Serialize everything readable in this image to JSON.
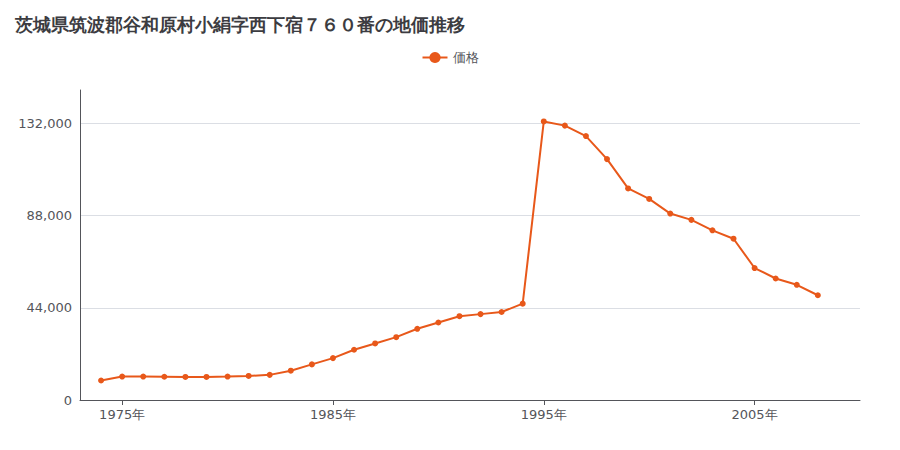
{
  "chart_data": {
    "type": "line",
    "title": "茨城県筑波郡谷和原村小絹字西下宿７６０番の地価推移",
    "x": [
      1974,
      1975,
      1976,
      1977,
      1978,
      1979,
      1980,
      1981,
      1982,
      1983,
      1984,
      1985,
      1986,
      1987,
      1988,
      1989,
      1990,
      1991,
      1992,
      1993,
      1994,
      1995,
      1996,
      1997,
      1998,
      1999,
      2000,
      2001,
      2002,
      2003,
      2004,
      2005,
      2006,
      2007,
      2008
    ],
    "series": [
      {
        "name": "価格",
        "color": "#E8581A",
        "marker": "circle",
        "values": [
          9300,
          11200,
          11200,
          11100,
          11000,
          11000,
          11200,
          11500,
          12000,
          14000,
          17000,
          20000,
          24000,
          27000,
          30000,
          34000,
          37000,
          40000,
          41000,
          42000,
          46000,
          133000,
          131000,
          126000,
          115000,
          101000,
          96000,
          89000,
          86000,
          81000,
          77000,
          63000,
          58000,
          55000,
          50000
        ]
      }
    ],
    "xlim": [
      1973,
      2010
    ],
    "xticks": [
      {
        "value": 1975,
        "label": "1975年"
      },
      {
        "value": 1985,
        "label": "1985年"
      },
      {
        "value": 1995,
        "label": "1995年"
      },
      {
        "value": 2005,
        "label": "2005年"
      }
    ],
    "ylim": [
      0,
      148000
    ],
    "yticks": [
      0,
      {
        "value": 44000,
        "label": "44,000"
      },
      {
        "value": 88000,
        "label": "88,000"
      },
      {
        "value": 132000,
        "label": "132,000"
      }
    ],
    "grid": true,
    "legend": "top"
  }
}
